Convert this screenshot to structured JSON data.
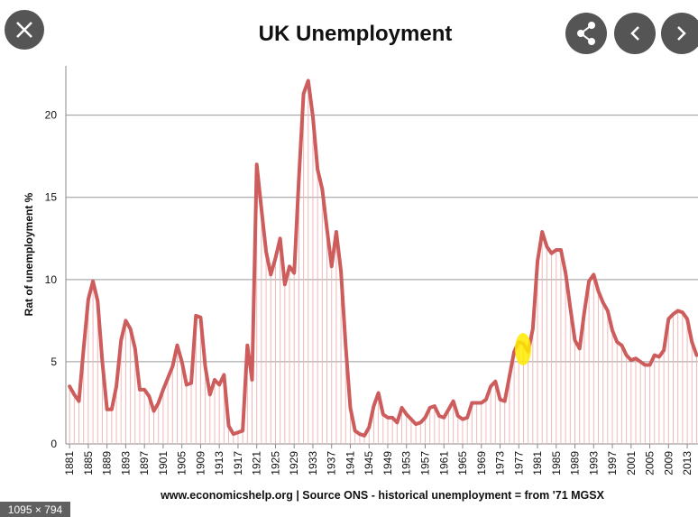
{
  "ui": {
    "size_label": "1095 × 794"
  },
  "chart_data": {
    "type": "line",
    "title": "UK Unemployment",
    "y_label": "Rat of unemployment %",
    "source": "www.economicshelp.org | Source ONS - historical unemployment = from '71 MGSX",
    "x": [
      1881,
      1882,
      1883,
      1884,
      1885,
      1886,
      1887,
      1888,
      1889,
      1890,
      1891,
      1892,
      1893,
      1894,
      1895,
      1896,
      1897,
      1898,
      1899,
      1900,
      1901,
      1902,
      1903,
      1904,
      1905,
      1906,
      1907,
      1908,
      1909,
      1910,
      1911,
      1912,
      1913,
      1914,
      1915,
      1916,
      1917,
      1918,
      1919,
      1920,
      1921,
      1922,
      1923,
      1924,
      1925,
      1926,
      1927,
      1928,
      1929,
      1930,
      1931,
      1932,
      1933,
      1934,
      1935,
      1936,
      1937,
      1938,
      1939,
      1940,
      1941,
      1942,
      1943,
      1944,
      1945,
      1946,
      1947,
      1948,
      1949,
      1950,
      1951,
      1952,
      1953,
      1954,
      1955,
      1956,
      1957,
      1958,
      1959,
      1960,
      1961,
      1962,
      1963,
      1964,
      1965,
      1966,
      1967,
      1968,
      1969,
      1970,
      1971,
      1972,
      1973,
      1974,
      1975,
      1976,
      1977,
      1978,
      1979,
      1980,
      1981,
      1982,
      1983,
      1984,
      1985,
      1986,
      1987,
      1988,
      1989,
      1990,
      1991,
      1992,
      1993,
      1994,
      1995,
      1996,
      1997,
      1998,
      1999,
      2000,
      2001,
      2002,
      2003,
      2004,
      2005,
      2006,
      2007,
      2008,
      2009,
      2010,
      2011,
      2012,
      2013,
      2014,
      2015
    ],
    "series": [
      {
        "color": "#cd5c5c",
        "values": [
          3.5,
          3.0,
          2.6,
          5.8,
          8.8,
          9.9,
          8.7,
          5.0,
          2.1,
          2.1,
          3.5,
          6.3,
          7.5,
          7.0,
          5.8,
          3.3,
          3.3,
          2.9,
          2.0,
          2.5,
          3.3,
          4.0,
          4.7,
          6.0,
          5.0,
          3.6,
          3.7,
          7.8,
          7.7,
          4.7,
          3.0,
          3.9,
          3.6,
          4.2,
          1.1,
          0.6,
          0.7,
          0.8,
          6.0,
          3.9,
          17.0,
          14.3,
          11.7,
          10.3,
          11.3,
          12.5,
          9.7,
          10.8,
          10.4,
          16.1,
          21.3,
          22.1,
          19.9,
          16.7,
          15.5,
          13.1,
          10.8,
          12.9,
          10.5,
          6.0,
          2.2,
          0.8,
          0.6,
          0.5,
          1.0,
          2.3,
          3.1,
          1.8,
          1.6,
          1.6,
          1.3,
          2.2,
          1.8,
          1.5,
          1.2,
          1.3,
          1.6,
          2.2,
          2.3,
          1.7,
          1.6,
          2.1,
          2.6,
          1.7,
          1.5,
          1.6,
          2.5,
          2.5,
          2.5,
          2.7,
          3.5,
          3.8,
          2.7,
          2.6,
          4.1,
          5.6,
          6.2,
          6.1,
          5.6,
          7.0,
          11.1,
          12.9,
          12.0,
          11.6,
          11.8,
          11.8,
          10.4,
          8.3,
          6.3,
          5.8,
          8.0,
          9.9,
          10.3,
          9.3,
          8.6,
          8.1,
          6.9,
          6.2,
          6.0,
          5.4,
          5.1,
          5.2,
          5.0,
          4.8,
          4.8,
          5.4,
          5.3,
          5.7,
          7.6,
          7.9,
          8.1,
          8.0,
          7.6,
          6.2,
          5.4
        ]
      }
    ],
    "xlim": [
      1880.2,
      2015.3
    ],
    "xticks": [
      1881,
      1885,
      1889,
      1893,
      1897,
      1901,
      1905,
      1909,
      1913,
      1917,
      1921,
      1925,
      1929,
      1933,
      1937,
      1941,
      1945,
      1949,
      1953,
      1957,
      1961,
      1965,
      1969,
      1973,
      1977,
      1981,
      1985,
      1989,
      1993,
      1997,
      2001,
      2005,
      2009,
      2013
    ],
    "ylim": [
      0,
      23
    ],
    "yticks": [
      0,
      5,
      10,
      15,
      20
    ],
    "grid": true,
    "drop_lines": true,
    "drop_color": "#f2b8b8"
  }
}
